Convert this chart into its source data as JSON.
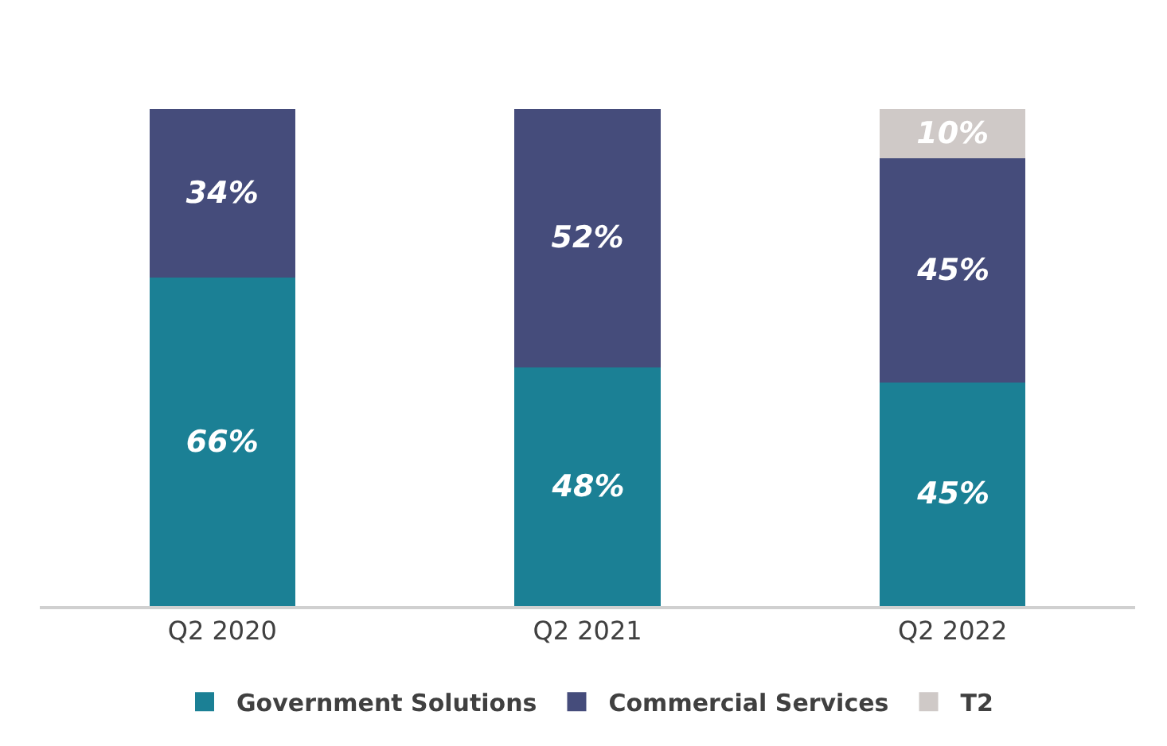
{
  "chart_data": {
    "type": "bar",
    "stacked": true,
    "categories": [
      "Q2 2020",
      "Q2 2021",
      "Q2 2022"
    ],
    "legend": "bottom",
    "series": [
      {
        "name": "Government Solutions",
        "color": "#1b8095",
        "values": [
          66,
          48,
          45
        ],
        "value_labels": [
          "66%",
          "48%",
          "45%"
        ]
      },
      {
        "name": "Commercial Services",
        "color": "#454c7b",
        "values": [
          34,
          52,
          45
        ],
        "value_labels": [
          "34%",
          "52%",
          "45%"
        ]
      },
      {
        "name": "T2",
        "color": "#cfc9c7",
        "values": [
          null,
          null,
          10
        ],
        "value_labels": [
          null,
          null,
          "10%"
        ]
      }
    ]
  }
}
